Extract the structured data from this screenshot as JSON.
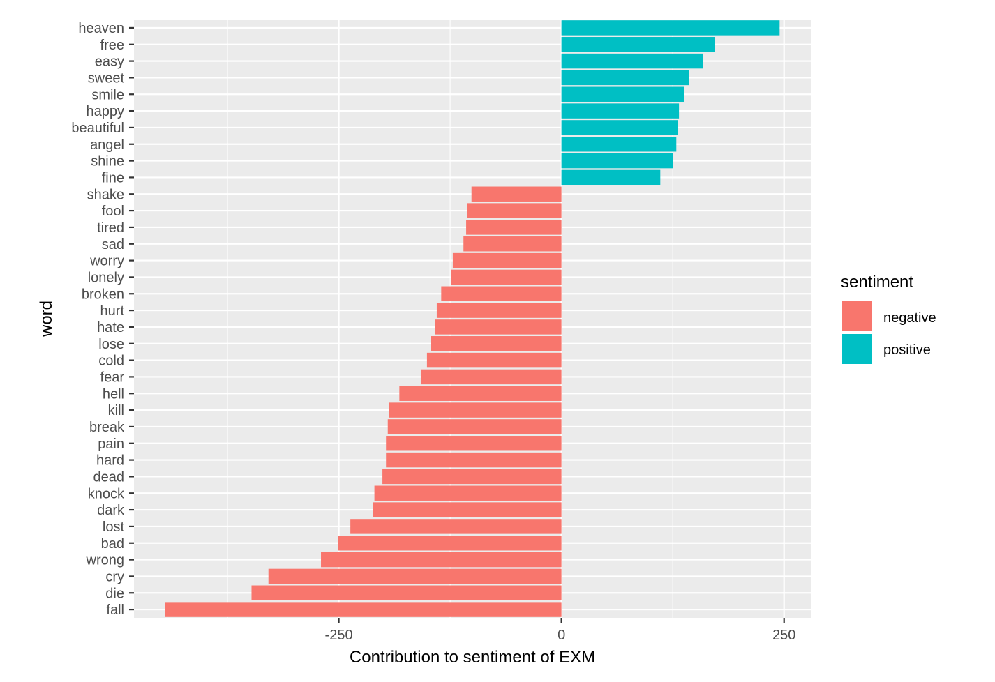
{
  "chart_data": {
    "type": "bar",
    "orientation": "horizontal",
    "xlabel": "Contribution to sentiment of EXM",
    "ylabel": "word",
    "xlim": [
      -480,
      280
    ],
    "xticks": [
      -250,
      0,
      250
    ],
    "xtick_labels": [
      "-250",
      "0",
      "250"
    ],
    "grid": true,
    "legend_position": "right",
    "legend": {
      "title": "sentiment",
      "entries": [
        {
          "label": "negative",
          "color": "#F8766D"
        },
        {
          "label": "positive",
          "color": "#00BFC4"
        }
      ]
    },
    "categories": [
      "heaven",
      "free",
      "easy",
      "sweet",
      "smile",
      "happy",
      "beautiful",
      "angel",
      "shine",
      "fine",
      "shake",
      "fool",
      "tired",
      "sad",
      "worry",
      "lonely",
      "broken",
      "hurt",
      "hate",
      "lose",
      "cold",
      "fear",
      "hell",
      "kill",
      "break",
      "pain",
      "hard",
      "dead",
      "knock",
      "dark",
      "lost",
      "bad",
      "wrong",
      "cry",
      "die",
      "fall"
    ],
    "values": [
      245,
      172,
      159,
      143,
      138,
      132,
      131,
      129,
      125,
      111,
      -101,
      -106,
      -107,
      -110,
      -122,
      -124,
      -135,
      -140,
      -142,
      -147,
      -151,
      -158,
      -182,
      -194,
      -195,
      -197,
      -197,
      -201,
      -210,
      -212,
      -237,
      -251,
      -270,
      -329,
      -348,
      -445
    ],
    "sentiment": [
      "positive",
      "positive",
      "positive",
      "positive",
      "positive",
      "positive",
      "positive",
      "positive",
      "positive",
      "positive",
      "negative",
      "negative",
      "negative",
      "negative",
      "negative",
      "negative",
      "negative",
      "negative",
      "negative",
      "negative",
      "negative",
      "negative",
      "negative",
      "negative",
      "negative",
      "negative",
      "negative",
      "negative",
      "negative",
      "negative",
      "negative",
      "negative",
      "negative",
      "negative",
      "negative",
      "negative"
    ]
  }
}
